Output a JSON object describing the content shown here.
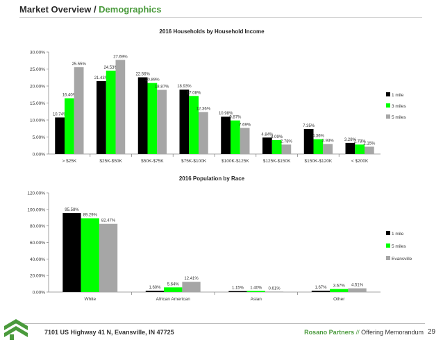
{
  "header": {
    "title_main": "Market Overview / ",
    "title_accent": "Demographics"
  },
  "colors": {
    "s1": "#000000",
    "s2": "#00ff00",
    "s3": "#a6a6a6",
    "accent": "#4a9a3c"
  },
  "chart_data": [
    {
      "type": "bar",
      "title": "2016 Households by Household Income",
      "categories": [
        "> $25K",
        "$25K-$50K",
        "$50K-$75K",
        "$75K-$100K",
        "$100K-$125K",
        "$125K-$150K",
        "$150K-$120K",
        "< $200K"
      ],
      "series": [
        {
          "name": "1 mile",
          "values": [
            10.74,
            21.43,
            22.56,
            18.93,
            10.98,
            4.84,
            7.35,
            3.28
          ]
        },
        {
          "name": "3 miles",
          "values": [
            16.4,
            24.53,
            20.89,
            17.08,
            9.87,
            4.09,
            4.36,
            2.78
          ]
        },
        {
          "name": "5 miles",
          "values": [
            25.55,
            27.69,
            18.87,
            12.36,
            7.69,
            2.78,
            2.93,
            2.15
          ]
        }
      ],
      "ylim": [
        0,
        30
      ],
      "yticks": [
        "0.00%",
        "5.00%",
        "10.00%",
        "15.00%",
        "20.00%",
        "25.00%",
        "30.00%"
      ],
      "xlabel": "",
      "ylabel": "",
      "legend": "right",
      "grid": false
    },
    {
      "type": "bar",
      "title": "2016 Population by Race",
      "categories": [
        "White",
        "African American",
        "Asian",
        "Other"
      ],
      "series": [
        {
          "name": "1 mile",
          "values": [
            95.58,
            1.6,
            1.15,
            1.67
          ]
        },
        {
          "name": "5 miles",
          "values": [
            89.29,
            5.64,
            1.4,
            3.67
          ]
        },
        {
          "name": "Evansville",
          "values": [
            82.47,
            12.41,
            0.61,
            4.51
          ]
        }
      ],
      "ylim": [
        0,
        120
      ],
      "yticks": [
        "0.00%",
        "20.00%",
        "40.00%",
        "60.00%",
        "80.00%",
        "100.00%",
        "120.00%"
      ],
      "xlabel": "",
      "ylabel": "",
      "legend": "right",
      "grid": false
    }
  ],
  "footer": {
    "address": "7101 US Highway 41 N, Evansville, IN 47725",
    "brand": "Rosano Partners",
    "separator": " // ",
    "doc": "Offering Memorandum",
    "page": "29"
  }
}
